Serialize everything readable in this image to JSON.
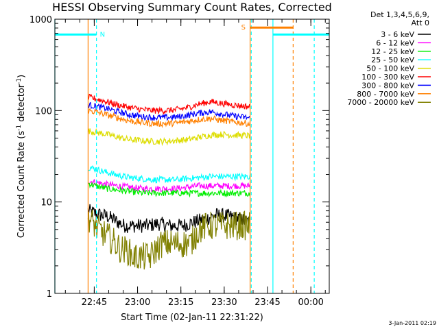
{
  "chart_data": {
    "type": "line",
    "title": "HESSI Observing Summary Count Rates, Corrected",
    "xlabel": "Start Time (02-Jan-11 22:31:22)",
    "ylabel_main": "Corrected Count Rate (s",
    "ylabel_sup1": "-1",
    "ylabel_mid": " detector",
    "ylabel_sup2": "-1",
    "ylabel_end": ")",
    "yscale": "log",
    "ylim": [
      1,
      1000
    ],
    "xlim_minutes": [
      0,
      95
    ],
    "x_ticks": [
      {
        "label": "22:45",
        "minute": 13.63
      },
      {
        "label": "23:00",
        "minute": 28.63
      },
      {
        "label": "23:15",
        "minute": 43.63
      },
      {
        "label": "23:30",
        "minute": 58.63
      },
      {
        "label": "23:45",
        "minute": 73.63
      },
      {
        "label": "00:00",
        "minute": 88.63
      }
    ],
    "y_ticks": [
      {
        "label": "1",
        "value": 1
      },
      {
        "label": "10",
        "value": 10
      },
      {
        "label": "100",
        "value": 100
      },
      {
        "label": "1000",
        "value": 1000
      }
    ],
    "legend": {
      "header": [
        "Det 1,3,4,5,6,9,",
        "Att 0"
      ],
      "entries": [
        {
          "label": "3 - 6 keV",
          "color": "#000000"
        },
        {
          "label": "6 - 12 keV",
          "color": "#ff00ff"
        },
        {
          "label": "12 - 25 keV",
          "color": "#00ee00"
        },
        {
          "label": "25 - 50 keV",
          "color": "#00ffff"
        },
        {
          "label": "50 - 100 keV",
          "color": "#dddd00"
        },
        {
          "label": "100 - 300 keV",
          "color": "#ff0000"
        },
        {
          "label": "300 - 800 keV",
          "color": "#0000ff"
        },
        {
          "label": "800 - 7000 keV",
          "color": "#ff8000"
        },
        {
          "label": "7000 - 20000 keV",
          "color": "#808000"
        }
      ]
    },
    "data_window_minutes": [
      11.5,
      67.6
    ],
    "series": [
      {
        "name": "3 - 6 keV",
        "color": "#000000",
        "x": [
          11.5,
          14,
          16,
          18,
          20,
          24,
          28,
          32,
          36,
          40,
          44,
          48,
          52,
          56,
          60,
          64,
          67.6
        ],
        "y": [
          8,
          7.5,
          7.2,
          7.0,
          6.5,
          5.5,
          5.5,
          5.5,
          5.8,
          5.5,
          5.5,
          6.0,
          6.5,
          7.2,
          7.0,
          6.5,
          6.0
        ]
      },
      {
        "name": "6 - 12 keV",
        "color": "#ff00ff",
        "x": [
          11.5,
          14,
          18,
          22,
          26,
          30,
          34,
          38,
          42,
          46,
          50,
          54,
          58,
          62,
          67.6
        ],
        "y": [
          17,
          16.5,
          15.5,
          15,
          14.5,
          14,
          14,
          14,
          14,
          14.5,
          15,
          15,
          15,
          15,
          15
        ]
      },
      {
        "name": "12 - 25 keV",
        "color": "#00ee00",
        "x": [
          11.5,
          14,
          18,
          22,
          26,
          30,
          34,
          38,
          42,
          46,
          50,
          54,
          58,
          62,
          67.6
        ],
        "y": [
          16,
          15,
          14,
          13.5,
          13,
          12.5,
          12.5,
          12.5,
          12.5,
          12.5,
          12.5,
          12.5,
          12.5,
          12.5,
          12.5
        ]
      },
      {
        "name": "25 - 50 keV",
        "color": "#00ffff",
        "x": [
          11.5,
          14,
          18,
          22,
          26,
          30,
          34,
          38,
          42,
          46,
          50,
          54,
          58,
          62,
          67.6
        ],
        "y": [
          24,
          23,
          21,
          19.5,
          18.5,
          18,
          17.5,
          17.5,
          17.5,
          18,
          18.5,
          19,
          19,
          19,
          19
        ]
      },
      {
        "name": "50 - 100 keV",
        "color": "#dddd00",
        "x": [
          11.5,
          14,
          18,
          22,
          26,
          30,
          34,
          38,
          42,
          46,
          50,
          54,
          58,
          62,
          67.6
        ],
        "y": [
          60,
          58,
          55,
          51,
          48,
          47,
          46,
          46,
          47,
          48,
          51,
          54,
          55,
          54,
          53
        ]
      },
      {
        "name": "100 - 300 keV",
        "color": "#ff0000",
        "x": [
          11.5,
          14,
          18,
          22,
          26,
          30,
          34,
          38,
          42,
          46,
          50,
          54,
          58,
          62,
          67.6
        ],
        "y": [
          140,
          135,
          125,
          115,
          108,
          103,
          100,
          100,
          102,
          108,
          118,
          125,
          120,
          115,
          110
        ]
      },
      {
        "name": "300 - 800 keV",
        "color": "#0000ff",
        "x": [
          11.5,
          14,
          18,
          22,
          26,
          30,
          34,
          38,
          42,
          46,
          50,
          54,
          58,
          62,
          67.6
        ],
        "y": [
          115,
          112,
          105,
          97,
          90,
          86,
          84,
          84,
          85,
          89,
          94,
          97,
          92,
          87,
          83
        ]
      },
      {
        "name": "800 - 7000 keV",
        "color": "#ff8000",
        "x": [
          11.5,
          14,
          18,
          22,
          26,
          30,
          34,
          38,
          42,
          46,
          50,
          54,
          58,
          62,
          67.6
        ],
        "y": [
          100,
          97,
          90,
          83,
          77,
          74,
          72,
          72,
          73,
          76,
          80,
          82,
          78,
          75,
          72
        ]
      },
      {
        "name": "7000 - 20000 keV",
        "color": "#808000",
        "x": [
          11.5,
          13,
          15,
          17,
          19,
          21,
          23,
          25,
          27,
          29,
          31,
          33,
          35,
          37,
          39,
          41,
          43,
          45,
          47,
          48,
          50,
          53,
          56,
          59,
          62,
          65,
          67.6
        ],
        "y": [
          7,
          6,
          5,
          4.5,
          4,
          3.5,
          3,
          3,
          2.5,
          2.5,
          2.5,
          2.5,
          3,
          3.5,
          3.5,
          3.5,
          3.5,
          3.5,
          3.5,
          4,
          5,
          5.5,
          5.5,
          5.5,
          5.5,
          5.5,
          5.5
        ]
      }
    ],
    "vertical_markers": [
      {
        "minute": 11.5,
        "color": "#ff8000",
        "style": "solid"
      },
      {
        "minute": 67.6,
        "color": "#ff8000",
        "style": "solid"
      },
      {
        "minute": 0,
        "color": "#00ffff",
        "style": "solid"
      },
      {
        "minute": 14.4,
        "color": "#00ffff",
        "style": "dashed"
      },
      {
        "minute": 68.0,
        "color": "#00ffff",
        "style": "dashed"
      },
      {
        "minute": 75.5,
        "color": "#00ffff",
        "style": "solid"
      },
      {
        "minute": 82.5,
        "color": "#ff8000",
        "style": "dashed"
      },
      {
        "minute": 89.8,
        "color": "#00ffff",
        "style": "dashed"
      }
    ],
    "flag_bars": [
      {
        "x_start": 0,
        "x_end": 14.4,
        "level": 680,
        "color": "#00ffff",
        "label": "N"
      },
      {
        "x_start": 75.5,
        "x_end": 95,
        "level": 680,
        "color": "#00ffff",
        "label": ""
      },
      {
        "x_start": 67.6,
        "x_end": 82.5,
        "level": 810,
        "color": "#ff8000",
        "label": "S"
      }
    ],
    "grid": false
  },
  "timestamp": "3-Jan-2011 02:19"
}
